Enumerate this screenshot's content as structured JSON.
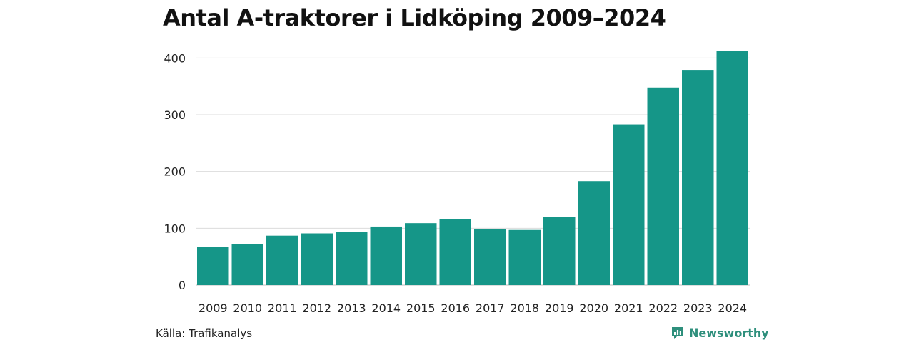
{
  "colors": {
    "bar": "#159688",
    "grid": "#dcdcdc",
    "axis": "#bdbdbd",
    "brand": "#2e8f7c"
  },
  "footer": {
    "source": "Källa: Trafikanalys",
    "brand": "Newsworthy",
    "brand_icon": "newsworthy-logo-icon"
  },
  "chart_data": {
    "type": "bar",
    "title": "Antal A-traktorer i Lidköping 2009–2024",
    "xlabel": "",
    "ylabel": "",
    "categories": [
      "2009",
      "2010",
      "2011",
      "2012",
      "2013",
      "2014",
      "2015",
      "2016",
      "2017",
      "2018",
      "2019",
      "2020",
      "2021",
      "2022",
      "2023",
      "2024"
    ],
    "values": [
      67,
      72,
      87,
      91,
      94,
      103,
      109,
      116,
      98,
      97,
      120,
      183,
      283,
      348,
      379,
      413
    ],
    "ylim": [
      0,
      413
    ],
    "yticks": [
      0,
      100,
      200,
      300,
      400
    ],
    "grid": true,
    "legend": "none"
  }
}
